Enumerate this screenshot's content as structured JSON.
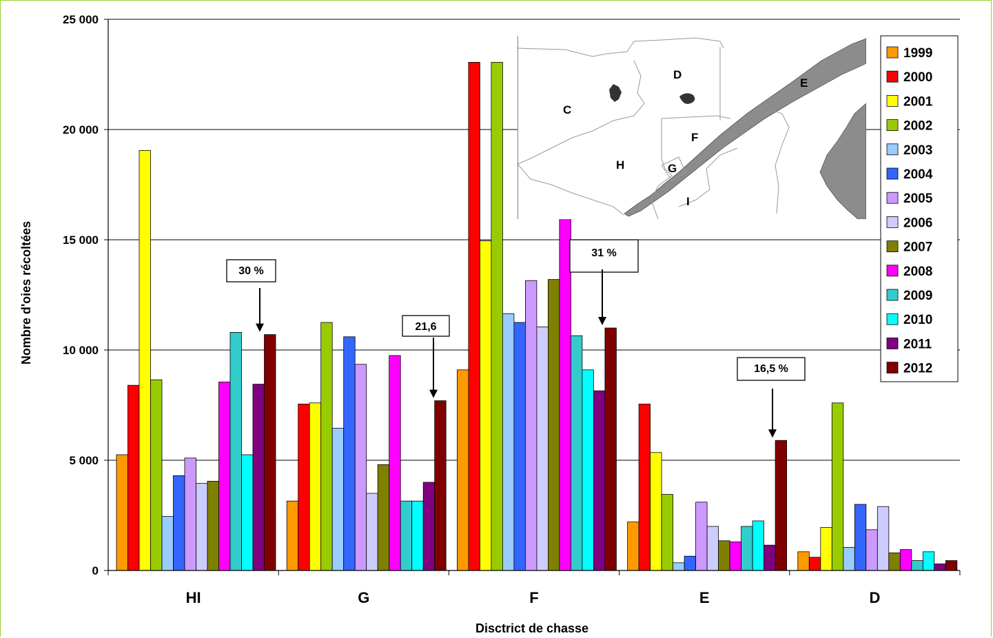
{
  "chart_data": {
    "type": "bar",
    "title": "",
    "xlabel": "Disctrict de chasse",
    "ylabel": "Nombre d'oies récoltées",
    "ylim": [
      0,
      25000
    ],
    "yticks": [
      "0",
      "5 000",
      "10 000",
      "15 000",
      "20 000",
      "25 000"
    ],
    "ytick_values": [
      0,
      5000,
      10000,
      15000,
      20000,
      25000
    ],
    "grid": true,
    "legend_position": "top-right",
    "categories": [
      "HI",
      "G",
      "F",
      "E",
      "D"
    ],
    "series": [
      {
        "name": "1999",
        "color": "#ff9900",
        "values": [
          5250,
          3150,
          9100,
          2200,
          850
        ]
      },
      {
        "name": "2000",
        "color": "#ff0000",
        "values": [
          8400,
          7550,
          23050,
          7550,
          600
        ]
      },
      {
        "name": "2001",
        "color": "#ffff00",
        "values": [
          19050,
          7600,
          14950,
          5350,
          1950
        ]
      },
      {
        "name": "2002",
        "color": "#99cc00",
        "values": [
          8650,
          11250,
          23050,
          3450,
          7600
        ]
      },
      {
        "name": "2003",
        "color": "#99ccff",
        "values": [
          2450,
          6450,
          11650,
          350,
          1050
        ]
      },
      {
        "name": "2004",
        "color": "#3366ff",
        "values": [
          4300,
          10600,
          11250,
          650,
          3000
        ]
      },
      {
        "name": "2005",
        "color": "#cc99ff",
        "values": [
          5100,
          9350,
          13150,
          3100,
          1850
        ]
      },
      {
        "name": "2006",
        "color": "#ccccff",
        "values": [
          3950,
          3500,
          11050,
          2000,
          2900
        ]
      },
      {
        "name": "2007",
        "color": "#808000",
        "values": [
          4050,
          4800,
          13200,
          1350,
          800
        ]
      },
      {
        "name": "2008",
        "color": "#ff00ff",
        "values": [
          8550,
          9750,
          16000,
          1300,
          950
        ]
      },
      {
        "name": "2009",
        "color": "#33cccc",
        "values": [
          10800,
          3150,
          10650,
          2000,
          450
        ]
      },
      {
        "name": "2010",
        "color": "#00ffff",
        "values": [
          5250,
          3150,
          9100,
          2250,
          850
        ]
      },
      {
        "name": "2011",
        "color": "#800080",
        "values": [
          8450,
          4000,
          8150,
          1150,
          300
        ]
      },
      {
        "name": "2012",
        "color": "#800000",
        "values": [
          10700,
          7700,
          11000,
          5900,
          450
        ]
      }
    ],
    "annotations": [
      {
        "text": "30 %",
        "category": "HI"
      },
      {
        "text": "21,6",
        "category": "G"
      },
      {
        "text": "31 %",
        "category": "F"
      },
      {
        "text": "16,5 %",
        "category": "E"
      }
    ]
  },
  "map": {
    "labels": [
      "C",
      "D",
      "E",
      "F",
      "G",
      "H",
      "I"
    ]
  }
}
